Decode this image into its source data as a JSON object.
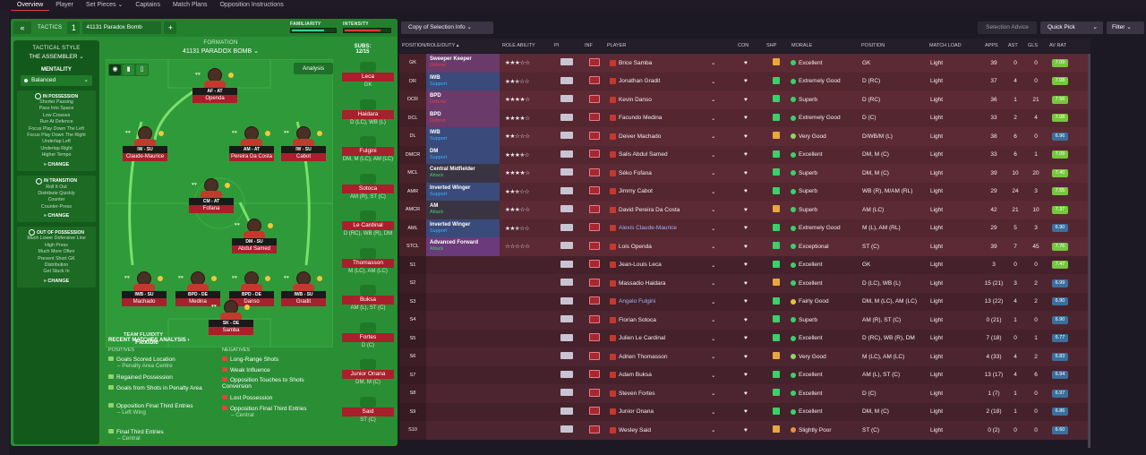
{
  "topnav": [
    {
      "label": "Overview",
      "active": true
    },
    {
      "label": "Player"
    },
    {
      "label": "Set Pieces ⌄"
    },
    {
      "label": "Captains"
    },
    {
      "label": "Match Plans"
    },
    {
      "label": "Opposition Instructions"
    }
  ],
  "header": {
    "back": "«",
    "tactics_label": "TACTICS",
    "slot": "1",
    "tactic_name": "41131 Paradox Bomb",
    "plus": "+",
    "familiarity_label": "FAMILIARITY",
    "intensity_label": "INTENSITY",
    "familiarity_level": 0.72,
    "intensity_level": 0.76,
    "familiarity_color": "#3bd0a0",
    "intensity_color": "#e63a3a"
  },
  "left": {
    "title": "TACTICAL STYLE",
    "style": "THE ASSEMBLER ⌄",
    "mentality_label": "MENTALITY",
    "mentality": "Balanced",
    "phases": [
      {
        "title": "IN POSSESSION",
        "items": [
          "Shorter Passing",
          "Pass Into Space",
          "Low Crosses",
          "Run At Defence",
          "Focus Play Down The Left",
          "Focus Play Down The Right",
          "Underlap Left",
          "Underlap Right",
          "Higher Tempo"
        ],
        "change": "CHANGE"
      },
      {
        "title": "IN TRANSITION",
        "items": [
          "Roll It Out",
          "Distribute Quickly",
          "Counter",
          "Counter-Press"
        ],
        "change": "CHANGE"
      },
      {
        "title": "OUT OF POSSESSION",
        "items": [
          "Much Lower Defensive Line",
          "High Press",
          "Much More Often",
          "Prevent Short GK",
          "Distribution",
          "Get Stuck In"
        ],
        "change": "CHANGE"
      }
    ]
  },
  "pitch": {
    "formation_label": "FORMATION",
    "formation": "41131 PARADOX BOMB ⌄",
    "subs_label": "SUBS:",
    "subs": "12/15",
    "analysis": "Analysis",
    "tools": [
      "◉",
      "▮",
      "▯"
    ],
    "fluidity_label": "TEAM FLUIDITY",
    "fluidity": "Flexible",
    "players": [
      {
        "role": "AF - AT",
        "name": "Openda"
      },
      {
        "role": "IW - SU",
        "name": "Claude-Maurice"
      },
      {
        "role": "AM - AT",
        "name": "Pereira Da Costa"
      },
      {
        "role": "IW - SU",
        "name": "Cabot"
      },
      {
        "role": "CM - AT",
        "name": "Fofana"
      },
      {
        "role": "DM - SU",
        "name": "Abdul Samed"
      },
      {
        "role": "IWB - SU",
        "name": "Machado"
      },
      {
        "role": "BPD - DE",
        "name": "Medina"
      },
      {
        "role": "BPD - DE",
        "name": "Danso"
      },
      {
        "role": "IWB - SU",
        "name": "Gradit"
      },
      {
        "role": "SK - DE",
        "name": "Samba"
      }
    ]
  },
  "subs": [
    {
      "name": "Leca",
      "pos": "GK"
    },
    {
      "name": "Haidara",
      "pos": "D (LC), WB (L)"
    },
    {
      "name": "Fulgini",
      "pos": "DM, M (LC), AM (LC)"
    },
    {
      "name": "Sotoca",
      "pos": "AM (R), ST (C)"
    },
    {
      "name": "Le Cardinal",
      "pos": "D (RC), WB (R), DM"
    },
    {
      "name": "Thomasson",
      "pos": "M (LC), AM (LC)"
    },
    {
      "name": "Buksa",
      "pos": "AM (L), ST (C)"
    },
    {
      "name": "Fortes",
      "pos": "D (C)"
    },
    {
      "name": "Junior Onana",
      "pos": "DM, M (C)"
    },
    {
      "name": "Said",
      "pos": "ST (C)"
    }
  ],
  "analysis": {
    "title": "RECENT MATCHES ANALYSIS ›",
    "pos_label": "POSITIVES",
    "neg_label": "NEGATIVES",
    "positives": [
      {
        "t": "Goals Scored Location",
        "s": "– Penalty Area Centre"
      },
      {
        "t": "Regained Possession"
      },
      {
        "t": "Goals from Shots in Penalty Area"
      },
      {
        "t": "Opposition Final Third Entries",
        "s": "– Left Wing"
      },
      {
        "t": "Final Third Entries",
        "s": "– Central"
      }
    ],
    "negatives": [
      {
        "t": "Long-Range Shots"
      },
      {
        "t": "Weak Influence"
      },
      {
        "t": "Opposition Touches to Shots Conversion"
      },
      {
        "t": "Lost Possession"
      },
      {
        "t": "Opposition Final Third Entries",
        "s": "– Central"
      }
    ]
  },
  "right": {
    "copy": "Copy of Selection Info ⌄",
    "advice": "Selection Advice",
    "quick": "Quick Pick",
    "quick_car": "⌄",
    "filter": "Filter ⌄",
    "columns": [
      "POSITION/ROLE/DUTY ▴",
      "ROLE ABILITY",
      "PI",
      "INF",
      "PLAYER",
      "CON",
      "SHP",
      "MORALE",
      "POSITION",
      "MATCH LOAD",
      "APPS",
      "AST",
      "GLS",
      "AV RAT"
    ],
    "rows": [
      {
        "p": "GK",
        "r": "Sweeper Keeper",
        "d": "Defend",
        "stars": 3,
        "half": 0,
        "name": "Brice Samba",
        "mor": "Excellent",
        "pos": "GK",
        "load": "Light",
        "apps": "39",
        "ast": "0",
        "gls": "0",
        "rat": "7.09",
        "rc": "#74c83c"
      },
      {
        "p": "DR",
        "r": "IWB",
        "d": "Support",
        "stars": 2,
        "half": 1,
        "name": "Jonathan Gradit",
        "mor": "Extremely Good",
        "pos": "D (RC)",
        "load": "Light",
        "apps": "37",
        "ast": "4",
        "gls": "0",
        "rat": "7.08",
        "rc": "#74c83c"
      },
      {
        "p": "DCR",
        "r": "BPD",
        "d": "Defend",
        "stars": 4,
        "half": 0,
        "name": "Kevin Danso",
        "mor": "Superb",
        "pos": "D (RC)",
        "load": "Light",
        "apps": "36",
        "ast": "1",
        "gls": "21",
        "rat": "7.56",
        "rc": "#74c83c"
      },
      {
        "p": "DCL",
        "r": "BPD",
        "d": "Defend",
        "stars": 4,
        "half": 0,
        "name": "Facundo Medina",
        "mor": "Extremely Good",
        "pos": "D (C)",
        "load": "Light",
        "apps": "33",
        "ast": "2",
        "gls": "4",
        "rat": "7.08",
        "rc": "#74c83c"
      },
      {
        "p": "DL",
        "r": "IWB",
        "d": "Support",
        "stars": 2,
        "half": 0,
        "name": "Deiver Machado",
        "mor": "Very Good",
        "pos": "D/WB/M (L)",
        "load": "Light",
        "apps": "38",
        "ast": "6",
        "gls": "0",
        "rat": "6.96",
        "rc": "#3a6f9e"
      },
      {
        "p": "DMCR",
        "r": "DM",
        "d": "Support",
        "stars": 3,
        "half": 1,
        "name": "Salis Abdul Samed",
        "mor": "Excellent",
        "pos": "DM, M (C)",
        "load": "Light",
        "apps": "33",
        "ast": "6",
        "gls": "1",
        "rat": "7.09",
        "rc": "#74c83c"
      },
      {
        "p": "MCL",
        "r": "Central Midfielder",
        "d": "Attack",
        "stars": 4,
        "half": 0,
        "name": "Séko Fofana",
        "mor": "Superb",
        "pos": "DM, M (C)",
        "load": "Light",
        "apps": "39",
        "ast": "10",
        "gls": "20",
        "rat": "7.40",
        "rc": "#74c83c"
      },
      {
        "p": "AMR",
        "r": "Inverted Winger",
        "d": "Support",
        "stars": 2,
        "half": 1,
        "name": "Jimmy Cabot",
        "mor": "Superb",
        "pos": "WB (R), M/AM (RL)",
        "load": "Light",
        "apps": "29",
        "ast": "24",
        "gls": "3",
        "rat": "7.55",
        "rc": "#74c83c"
      },
      {
        "p": "AMCR",
        "r": "AM",
        "d": "Attack",
        "stars": 3,
        "half": 0,
        "name": "David Pereira Da Costa",
        "mor": "Superb",
        "pos": "AM (LC)",
        "load": "Light",
        "apps": "42",
        "ast": "21",
        "gls": "10",
        "rat": "7.37",
        "rc": "#74c83c"
      },
      {
        "p": "AML",
        "r": "Inverted Winger",
        "d": "Support",
        "stars": 2,
        "half": 1,
        "name": "Alexis Claude-Maurice",
        "link": true,
        "mor": "Extremely Good",
        "pos": "M (L), AM (RL)",
        "load": "Light",
        "apps": "29",
        "ast": "5",
        "gls": "3",
        "rat": "6.90",
        "rc": "#3a6f9e"
      },
      {
        "p": "STCL",
        "r": "Advanced Forward",
        "d": "Attack",
        "stars": 0,
        "half": 0,
        "name": "Lois Openda",
        "mor": "Exceptional",
        "pos": "ST (C)",
        "load": "Light",
        "apps": "39",
        "ast": "7",
        "gls": "45",
        "rat": "7.76",
        "rc": "#74c83c"
      },
      {
        "p": "S1",
        "name": "Jean-Louis Leca",
        "mor": "Excellent",
        "pos": "GK",
        "load": "Light",
        "apps": "3",
        "ast": "0",
        "gls": "0",
        "rat": "7.47",
        "rc": "#74c83c"
      },
      {
        "p": "S2",
        "name": "Massadio Haidara",
        "mor": "Excellent",
        "pos": "D (LC), WB (L)",
        "load": "Light",
        "apps": "15 (21)",
        "ast": "3",
        "gls": "2",
        "rat": "6.99",
        "rc": "#3a6f9e"
      },
      {
        "p": "S3",
        "name": "Angelo Fulgini",
        "link": true,
        "mor": "Fairly Good",
        "pos": "DM, M (LC), AM (LC)",
        "load": "Light",
        "apps": "13 (22)",
        "ast": "4",
        "gls": "2",
        "rat": "6.90",
        "rc": "#3a6f9e"
      },
      {
        "p": "S4",
        "name": "Florian Sotoca",
        "mor": "Superb",
        "pos": "AM (R), ST (C)",
        "load": "Light",
        "apps": "0 (21)",
        "ast": "1",
        "gls": "0",
        "rat": "6.90",
        "rc": "#3a6f9e"
      },
      {
        "p": "S5",
        "name": "Julien Le Cardinal",
        "mor": "Excellent",
        "pos": "D (RC), WB (R), DM",
        "load": "Light",
        "apps": "7 (18)",
        "ast": "0",
        "gls": "1",
        "rat": "6.77",
        "rc": "#3a6f9e"
      },
      {
        "p": "S6",
        "name": "Adrien Thomasson",
        "mor": "Very Good",
        "pos": "M (LC), AM (LC)",
        "load": "Light",
        "apps": "4 (33)",
        "ast": "4",
        "gls": "2",
        "rat": "6.83",
        "rc": "#3a6f9e"
      },
      {
        "p": "S7",
        "name": "Adam Buksa",
        "mor": "Excellent",
        "pos": "AM (L), ST (C)",
        "load": "Light",
        "apps": "13 (17)",
        "ast": "4",
        "gls": "6",
        "rat": "6.94",
        "rc": "#3a6f9e"
      },
      {
        "p": "S8",
        "name": "Steven Fortes",
        "mor": "Excellent",
        "pos": "D (C)",
        "load": "Light",
        "apps": "1 (7)",
        "ast": "1",
        "gls": "0",
        "rat": "6.97",
        "rc": "#3a6f9e"
      },
      {
        "p": "S9",
        "name": "Junior Onana",
        "mor": "Excellent",
        "pos": "DM, M (C)",
        "load": "Light",
        "apps": "2 (18)",
        "ast": "1",
        "gls": "0",
        "rat": "6.86",
        "rc": "#3a6f9e"
      },
      {
        "p": "S10",
        "name": "Wesley Said",
        "mor": "Slightly Poor",
        "pos": "ST (C)",
        "load": "Light",
        "apps": "0 (2)",
        "ast": "0",
        "gls": "0",
        "rat": "6.60",
        "rc": "#3a6f9e"
      }
    ]
  }
}
